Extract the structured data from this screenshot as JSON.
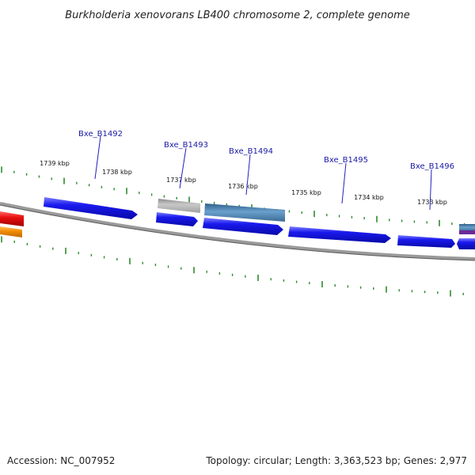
{
  "title": "Burkholderia xenovorans LB400 chromosome 2, complete genome",
  "footer": {
    "accession": "Accession: NC_007952",
    "summary": "Topology: circular; Length: 3,363,523 bp; Genes: 2,977"
  },
  "ruler": {
    "labels": [
      "1739 kbp",
      "1738 kbp",
      "1737 kbp",
      "1736 kbp",
      "1735 kbp",
      "1734 kbp",
      "1733 kbp"
    ]
  },
  "genes": [
    {
      "locus_tag": "Bxe_B1492"
    },
    {
      "locus_tag": "Bxe_B1493"
    },
    {
      "locus_tag": "Bxe_B1494"
    },
    {
      "locus_tag": "Bxe_B1495"
    },
    {
      "locus_tag": "Bxe_B1496"
    }
  ],
  "colors": {
    "backbone": "#7a7a7a",
    "tick": "#2e8b2e",
    "cds": "#1414e6",
    "cds_alt": "#4682b4",
    "gray_feature": "#b8b8b8",
    "red_feature": "#e01010",
    "orange_feature": "#f08c00",
    "label_line": "#2020c0",
    "label_text": "#1a1aa6"
  }
}
